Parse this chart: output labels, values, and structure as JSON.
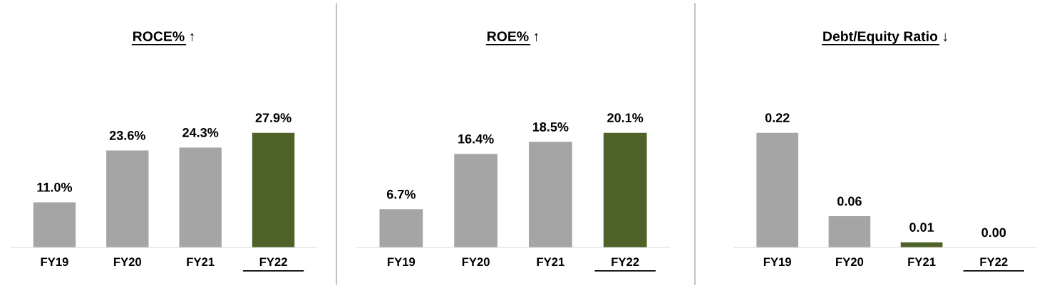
{
  "chart_data": [
    {
      "type": "bar",
      "title": "ROCE% ↑",
      "categories": [
        "FY19",
        "FY20",
        "FY21",
        "FY22"
      ],
      "values": [
        11.0,
        23.6,
        24.3,
        27.9
      ],
      "colors": [
        "#a5a5a5",
        "#a5a5a5",
        "#a5a5a5",
        "#4f6228"
      ],
      "value_labels": [
        "11.0%",
        "23.6%",
        "24.3%",
        "27.9%"
      ],
      "grid": false,
      "legend": false
    },
    {
      "type": "bar",
      "title": "ROE% ↑",
      "categories": [
        "FY19",
        "FY20",
        "FY21",
        "FY22"
      ],
      "values": [
        6.7,
        16.4,
        18.5,
        20.1
      ],
      "colors": [
        "#a5a5a5",
        "#a5a5a5",
        "#a5a5a5",
        "#4f6228"
      ],
      "value_labels": [
        "6.7%",
        "16.4%",
        "18.5%",
        "20.1%"
      ],
      "grid": false,
      "legend": false
    },
    {
      "type": "bar",
      "title": "Debt/Equity Ratio ↓",
      "categories": [
        "FY19",
        "FY20",
        "FY21",
        "FY22"
      ],
      "values": [
        0.22,
        0.06,
        0.01,
        0.0
      ],
      "colors": [
        "#a5a5a5",
        "#a5a5a5",
        "#4f6228",
        "#4f6228"
      ],
      "value_labels": [
        "0.22",
        "0.06",
        "0.01",
        "0.00"
      ],
      "grid": false,
      "legend": false
    }
  ]
}
